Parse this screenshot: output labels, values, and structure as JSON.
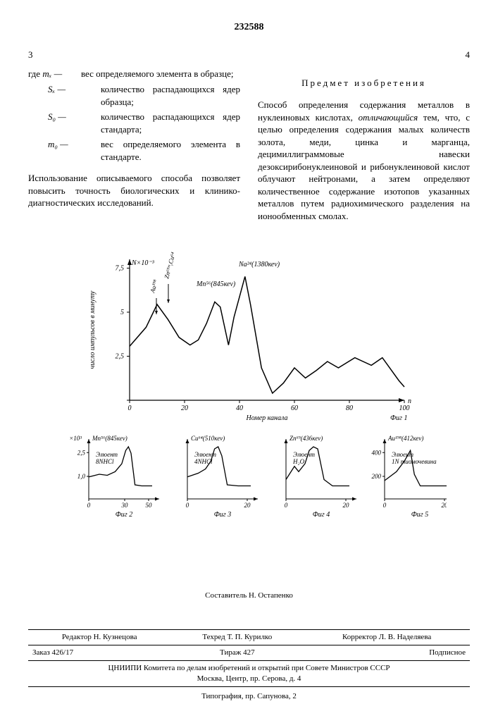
{
  "patent_number": "232588",
  "left_page_num": "3",
  "right_page_num": "4",
  "definitions": {
    "where_label": "где",
    "items": [
      {
        "sym": "mₓ —",
        "txt": "вес определяемого элемента в образце;"
      },
      {
        "sym": "Sₓ —",
        "txt": "количество распадающихся ядер образца;"
      },
      {
        "sym": "S₀ —",
        "txt": "количество распадающихся ядер стандарта;"
      },
      {
        "sym": "m₀ —",
        "txt": "вес определяемого элемента в стандарте."
      }
    ]
  },
  "left_paragraph": "Использование описываемого способа позволяет повысить точность биологических и клинико-диагностических исследований.",
  "right_heading": "Предмет изобретения",
  "right_paragraph": "Способ определения содержания металлов в нуклеиновых кислотах, отличающийся тем, что, с целью определения содержания малых количеств золота, меди, цинка и марганца, децимиллиграммовые навески дезоксирибонуклеиновой и рибонуклеиновой кислот облучают нейтронами, а затем определяют количественное содержание изотопов указанных металлов путем радиохимического разделения на ионообменных смолах.",
  "main_chart": {
    "ylabel": "число импульсов в минуту",
    "yaxis_top": "N×10⁻³",
    "yticks": [
      "7,5",
      "5",
      "2,5",
      "0"
    ],
    "xlabel": "Номер канала",
    "xticks": [
      "0",
      "20",
      "40",
      "60",
      "80",
      "100"
    ],
    "x_end": "n",
    "fig_label": "Фиг 1",
    "annotations": {
      "au": "Au¹⁹⁸",
      "zn_cu": "Zn⁶⁹ᵐ,Cu⁶⁴",
      "mn": "Mn⁵⁶(845кеv)",
      "na": "Na²⁴(1380кеv)"
    },
    "curve": [
      [
        0,
        63
      ],
      [
        6,
        48
      ],
      [
        10,
        30
      ],
      [
        14,
        42
      ],
      [
        18,
        56
      ],
      [
        22,
        62
      ],
      [
        25,
        58
      ],
      [
        28,
        45
      ],
      [
        31,
        28
      ],
      [
        33,
        32
      ],
      [
        36,
        62
      ],
      [
        38,
        40
      ],
      [
        42,
        8
      ],
      [
        44,
        30
      ],
      [
        48,
        80
      ],
      [
        52,
        100
      ],
      [
        56,
        92
      ],
      [
        60,
        80
      ],
      [
        64,
        88
      ],
      [
        68,
        82
      ],
      [
        72,
        75
      ],
      [
        76,
        80
      ],
      [
        82,
        72
      ],
      [
        88,
        78
      ],
      [
        92,
        72
      ],
      [
        98,
        90
      ],
      [
        100,
        95
      ]
    ]
  },
  "small_charts": [
    {
      "fig": "Фиг 2",
      "title": "Mn⁵⁶(845кеv)",
      "eluent": "Элюент\n8NHCl",
      "yticks": [
        "2,5",
        "1,0"
      ],
      "yaxis_label": "×10³",
      "xticks": [
        "0",
        "30",
        "50"
      ],
      "curve": [
        [
          0,
          65
        ],
        [
          8,
          60
        ],
        [
          14,
          62
        ],
        [
          20,
          55
        ],
        [
          25,
          40
        ],
        [
          28,
          15
        ],
        [
          30,
          8
        ],
        [
          32,
          20
        ],
        [
          35,
          80
        ],
        [
          40,
          82
        ],
        [
          48,
          82
        ]
      ]
    },
    {
      "fig": "Фиг 3",
      "title": "Cu⁶⁴(510кеv)",
      "eluent": "Элюент\n4NHCl",
      "xticks": [
        "0",
        "20"
      ],
      "curve": [
        [
          0,
          65
        ],
        [
          6,
          58
        ],
        [
          10,
          50
        ],
        [
          13,
          35
        ],
        [
          15,
          12
        ],
        [
          17,
          8
        ],
        [
          19,
          25
        ],
        [
          22,
          80
        ],
        [
          28,
          82
        ],
        [
          35,
          82
        ]
      ]
    },
    {
      "fig": "Фиг 4",
      "title": "Zn⁶⁹(436кеv)",
      "eluent": "Элюент\nH₂O",
      "xticks": [
        "0",
        "20"
      ],
      "curve": [
        [
          0,
          70
        ],
        [
          4,
          45
        ],
        [
          6,
          55
        ],
        [
          9,
          40
        ],
        [
          11,
          15
        ],
        [
          13,
          8
        ],
        [
          15,
          12
        ],
        [
          18,
          70
        ],
        [
          22,
          82
        ],
        [
          30,
          82
        ]
      ]
    },
    {
      "fig": "Фиг 5",
      "title": "Au¹⁹⁸(412кеv)",
      "eluent": "Элюент\n1N тиомочевина",
      "yticks": [
        "400",
        "200"
      ],
      "xticks": [
        "0",
        "20"
      ],
      "curve": [
        [
          0,
          72
        ],
        [
          6,
          55
        ],
        [
          10,
          35
        ],
        [
          13,
          15
        ],
        [
          15,
          60
        ],
        [
          18,
          82
        ],
        [
          25,
          82
        ],
        [
          32,
          82
        ]
      ]
    }
  ],
  "footer": {
    "composer": "Составитель Н. Остапенко",
    "editor": "Редактор Н. Кузнецова",
    "techred": "Техред Т. П. Курилко",
    "corrector": "Корректор Л. В. Наделяева",
    "order": "Заказ 426/17",
    "tirage": "Тираж 427",
    "signed": "Подписное",
    "org": "ЦНИИПИ Комитета по делам изобретений и открытий при Совете Министров СССР",
    "address": "Москва, Центр, пр. Серова, д. 4",
    "typo": "Типография, пр. Сапунова, 2"
  }
}
